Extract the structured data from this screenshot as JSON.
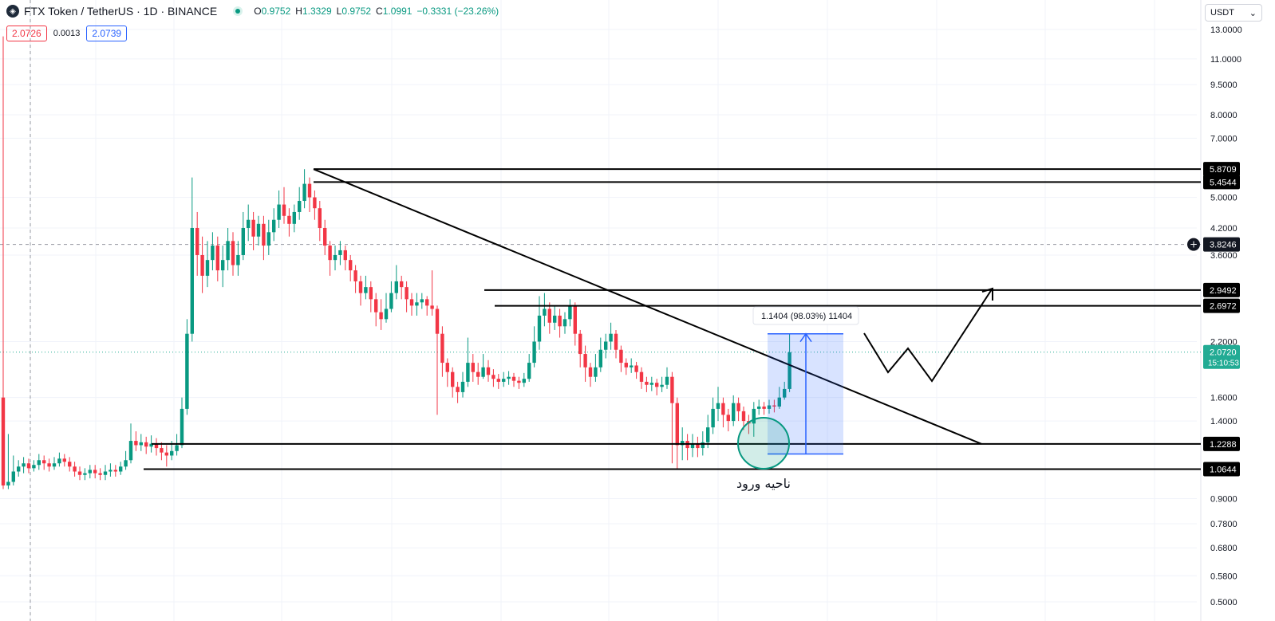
{
  "header": {
    "symbol_title": "FTX Token / TetherUS · 1D · BINANCE",
    "ohlc": [
      {
        "label": "O",
        "value": "0.9752"
      },
      {
        "label": "H",
        "value": "1.3329"
      },
      {
        "label": "L",
        "value": "0.9752"
      },
      {
        "label": "C",
        "value": "1.0991"
      },
      {
        "label": "",
        "value": "−0.3331 (−23.26%)"
      }
    ],
    "sell_price": "2.0726",
    "spread": "0.0013",
    "buy_price": "2.0739",
    "currency": "USDT"
  },
  "colors": {
    "up": "#089981",
    "down": "#f23645",
    "accent": "#2962ff",
    "last_price": "#22ab94"
  },
  "chart_data": {
    "type": "candlestick",
    "symbol": "FTX Token / TetherUS",
    "interval": "1D",
    "exchange": "BINANCE",
    "y_scale": "log",
    "ylim": [
      0.5,
      13.0
    ],
    "y_ticks": [
      "13.0000",
      "11.0000",
      "9.5000",
      "8.0000",
      "7.0000",
      "5.0000",
      "4.2000",
      "3.6000",
      "2.2000",
      "1.6000",
      "1.4000",
      "0.9000",
      "0.7800",
      "0.6800",
      "0.5800",
      "0.5000"
    ],
    "price_levels": [
      {
        "label": "5.8709",
        "value": 5.8709
      },
      {
        "label": "5.4544",
        "value": 5.4544
      },
      {
        "label": "2.9492",
        "value": 2.9492
      },
      {
        "label": "2.6972",
        "value": 2.6972
      },
      {
        "label": "1.2288",
        "value": 1.2288
      },
      {
        "label": "1.0644",
        "value": 1.0644
      }
    ],
    "crosshair_price": {
      "label": "3.8246",
      "value": 3.8246
    },
    "last_price": {
      "label": "2.0720",
      "value": 2.072,
      "countdown": "15:10:53"
    },
    "measure_label": "1.1404 (98.03%) 11404",
    "entry_zone_label": "ناحیه ورود",
    "candles": [
      [
        1.6,
        0.97,
        12.5,
        0.95
      ],
      [
        0.97,
        0.99,
        1.3,
        0.95
      ],
      [
        0.99,
        1.05,
        1.15,
        0.97
      ],
      [
        1.05,
        1.08,
        1.12,
        1.02
      ],
      [
        1.08,
        1.1,
        1.14,
        1.04
      ],
      [
        1.1,
        1.07,
        1.13,
        1.04
      ],
      [
        1.07,
        1.09,
        1.12,
        1.05
      ],
      [
        1.09,
        1.12,
        1.16,
        1.06
      ],
      [
        1.12,
        1.1,
        1.15,
        1.06
      ],
      [
        1.1,
        1.08,
        1.13,
        1.05
      ],
      [
        1.08,
        1.1,
        1.14,
        1.06
      ],
      [
        1.1,
        1.13,
        1.17,
        1.08
      ],
      [
        1.13,
        1.11,
        1.16,
        1.08
      ],
      [
        1.11,
        1.08,
        1.14,
        1.05
      ],
      [
        1.08,
        1.05,
        1.11,
        1.02
      ],
      [
        1.05,
        1.03,
        1.08,
        1.0
      ],
      [
        1.03,
        1.04,
        1.07,
        1.0
      ],
      [
        1.04,
        1.06,
        1.09,
        1.01
      ],
      [
        1.06,
        1.04,
        1.09,
        1.01
      ],
      [
        1.04,
        1.03,
        1.07,
        1.0
      ],
      [
        1.03,
        1.05,
        1.09,
        1.0
      ],
      [
        1.05,
        1.06,
        1.1,
        1.02
      ],
      [
        1.06,
        1.05,
        1.09,
        1.02
      ],
      [
        1.05,
        1.08,
        1.11,
        1.03
      ],
      [
        1.08,
        1.12,
        1.18,
        1.06
      ],
      [
        1.12,
        1.25,
        1.38,
        1.1
      ],
      [
        1.25,
        1.22,
        1.32,
        1.18
      ],
      [
        1.22,
        1.24,
        1.3,
        1.18
      ],
      [
        1.24,
        1.21,
        1.28,
        1.16
      ],
      [
        1.21,
        1.23,
        1.29,
        1.17
      ],
      [
        1.23,
        1.2,
        1.27,
        1.15
      ],
      [
        1.2,
        1.17,
        1.24,
        1.12
      ],
      [
        1.17,
        1.15,
        1.22,
        1.08
      ],
      [
        1.15,
        1.18,
        1.25,
        1.12
      ],
      [
        1.18,
        1.22,
        1.3,
        1.15
      ],
      [
        1.22,
        1.5,
        1.6,
        1.2
      ],
      [
        1.5,
        2.3,
        2.5,
        1.45
      ],
      [
        2.3,
        4.2,
        5.6,
        2.2
      ],
      [
        4.2,
        3.6,
        4.6,
        3.2
      ],
      [
        3.6,
        3.2,
        4.0,
        2.9
      ],
      [
        3.2,
        3.5,
        3.9,
        3.0
      ],
      [
        3.5,
        3.8,
        4.1,
        3.3
      ],
      [
        3.8,
        3.3,
        4.0,
        3.1
      ],
      [
        3.3,
        3.5,
        3.8,
        3.0
      ],
      [
        3.5,
        3.9,
        4.2,
        3.3
      ],
      [
        3.9,
        3.4,
        4.1,
        3.2
      ],
      [
        3.4,
        3.6,
        3.9,
        3.2
      ],
      [
        3.6,
        4.2,
        4.6,
        3.5
      ],
      [
        4.2,
        4.4,
        4.8,
        3.9
      ],
      [
        4.4,
        4.0,
        4.6,
        3.7
      ],
      [
        4.0,
        4.3,
        4.5,
        3.8
      ],
      [
        4.3,
        3.8,
        4.5,
        3.5
      ],
      [
        3.8,
        4.1,
        4.4,
        3.6
      ],
      [
        4.1,
        4.4,
        4.7,
        3.9
      ],
      [
        4.4,
        4.8,
        5.2,
        4.2
      ],
      [
        4.8,
        4.5,
        5.3,
        4.3
      ],
      [
        4.5,
        4.3,
        4.7,
        4.0
      ],
      [
        4.3,
        4.6,
        4.8,
        4.1
      ],
      [
        4.6,
        4.9,
        5.3,
        4.4
      ],
      [
        4.9,
        5.4,
        5.87,
        4.7
      ],
      [
        5.4,
        5.0,
        5.6,
        4.6
      ],
      [
        5.0,
        4.7,
        5.2,
        4.4
      ],
      [
        4.7,
        4.2,
        4.9,
        3.9
      ],
      [
        4.2,
        3.8,
        4.4,
        3.6
      ],
      [
        3.8,
        3.5,
        3.9,
        3.2
      ],
      [
        3.5,
        3.6,
        3.8,
        3.3
      ],
      [
        3.6,
        3.7,
        3.9,
        3.4
      ],
      [
        3.7,
        3.5,
        3.8,
        3.3
      ],
      [
        3.5,
        3.3,
        3.6,
        3.1
      ],
      [
        3.3,
        3.1,
        3.4,
        2.9
      ],
      [
        3.1,
        2.9,
        3.2,
        2.7
      ],
      [
        2.9,
        3.0,
        3.2,
        2.8
      ],
      [
        3.0,
        2.8,
        3.1,
        2.6
      ],
      [
        2.8,
        2.6,
        2.9,
        2.4
      ],
      [
        2.6,
        2.5,
        2.8,
        2.35
      ],
      [
        2.5,
        2.65,
        2.9,
        2.45
      ],
      [
        2.65,
        2.9,
        3.1,
        2.6
      ],
      [
        2.9,
        3.1,
        3.4,
        2.8
      ],
      [
        3.1,
        3.0,
        3.2,
        2.8
      ],
      [
        3.0,
        2.8,
        3.1,
        2.6
      ],
      [
        2.8,
        2.7,
        2.9,
        2.55
      ],
      [
        2.7,
        2.75,
        2.9,
        2.55
      ],
      [
        2.75,
        2.8,
        2.9,
        2.65
      ],
      [
        2.8,
        2.7,
        2.85,
        2.55
      ],
      [
        2.7,
        2.65,
        3.3,
        2.55
      ],
      [
        2.65,
        2.3,
        2.7,
        1.45
      ],
      [
        2.3,
        1.95,
        2.4,
        1.8
      ],
      [
        1.95,
        1.85,
        2.0,
        1.7
      ],
      [
        1.85,
        1.7,
        1.9,
        1.6
      ],
      [
        1.7,
        1.65,
        1.75,
        1.55
      ],
      [
        1.65,
        1.75,
        1.85,
        1.6
      ],
      [
        1.75,
        1.95,
        2.25,
        1.7
      ],
      [
        1.95,
        1.85,
        2.05,
        1.75
      ],
      [
        1.85,
        1.8,
        1.95,
        1.72
      ],
      [
        1.8,
        1.9,
        2.05,
        1.78
      ],
      [
        1.9,
        1.82,
        1.98,
        1.75
      ],
      [
        1.82,
        1.78,
        1.88,
        1.7
      ],
      [
        1.78,
        1.75,
        1.83,
        1.68
      ],
      [
        1.75,
        1.78,
        1.85,
        1.7
      ],
      [
        1.78,
        1.8,
        1.86,
        1.72
      ],
      [
        1.8,
        1.76,
        1.84,
        1.7
      ],
      [
        1.76,
        1.74,
        1.8,
        1.68
      ],
      [
        1.74,
        1.78,
        1.84,
        1.7
      ],
      [
        1.78,
        1.95,
        2.05,
        1.75
      ],
      [
        1.95,
        2.2,
        2.4,
        1.9
      ],
      [
        2.2,
        2.55,
        2.85,
        2.1
      ],
      [
        2.55,
        2.65,
        2.9,
        2.4
      ],
      [
        2.65,
        2.45,
        2.75,
        2.3
      ],
      [
        2.45,
        2.55,
        2.7,
        2.35
      ],
      [
        2.55,
        2.4,
        2.65,
        2.25
      ],
      [
        2.4,
        2.5,
        2.6,
        2.3
      ],
      [
        2.5,
        2.7,
        2.8,
        2.4
      ],
      [
        2.7,
        2.3,
        2.75,
        2.15
      ],
      [
        2.3,
        2.05,
        2.35,
        1.9
      ],
      [
        2.05,
        1.9,
        2.15,
        1.75
      ],
      [
        1.9,
        1.8,
        1.95,
        1.7
      ],
      [
        1.8,
        1.9,
        2.05,
        1.75
      ],
      [
        1.9,
        2.1,
        2.25,
        1.85
      ],
      [
        2.1,
        2.2,
        2.3,
        2.0
      ],
      [
        2.2,
        2.3,
        2.45,
        2.1
      ],
      [
        2.3,
        2.1,
        2.35,
        2.0
      ],
      [
        2.1,
        1.95,
        2.15,
        1.85
      ],
      [
        1.95,
        1.9,
        2.0,
        1.82
      ],
      [
        1.9,
        1.92,
        2.0,
        1.84
      ],
      [
        1.92,
        1.85,
        1.96,
        1.78
      ],
      [
        1.85,
        1.75,
        1.9,
        1.68
      ],
      [
        1.75,
        1.72,
        1.8,
        1.65
      ],
      [
        1.72,
        1.74,
        1.8,
        1.66
      ],
      [
        1.74,
        1.7,
        1.78,
        1.62
      ],
      [
        1.7,
        1.72,
        1.8,
        1.65
      ],
      [
        1.72,
        1.8,
        1.9,
        1.68
      ],
      [
        1.8,
        1.55,
        1.85,
        1.1
      ],
      [
        1.55,
        1.22,
        1.6,
        1.06
      ],
      [
        1.22,
        1.25,
        1.35,
        1.12
      ],
      [
        1.25,
        1.2,
        1.3,
        1.12
      ],
      [
        1.2,
        1.23,
        1.3,
        1.14
      ],
      [
        1.23,
        1.2,
        1.28,
        1.14
      ],
      [
        1.2,
        1.24,
        1.32,
        1.15
      ],
      [
        1.24,
        1.35,
        1.45,
        1.2
      ],
      [
        1.35,
        1.5,
        1.6,
        1.3
      ],
      [
        1.5,
        1.55,
        1.7,
        1.4
      ],
      [
        1.55,
        1.45,
        1.6,
        1.35
      ],
      [
        1.45,
        1.4,
        1.5,
        1.32
      ],
      [
        1.4,
        1.55,
        1.62,
        1.36
      ],
      [
        1.55,
        1.48,
        1.6,
        1.4
      ],
      [
        1.48,
        1.4,
        1.52,
        1.33
      ],
      [
        1.4,
        1.38,
        1.45,
        1.3
      ],
      [
        1.38,
        1.5,
        1.56,
        1.28
      ],
      [
        1.5,
        1.52,
        1.58,
        1.45
      ],
      [
        1.52,
        1.5,
        1.56,
        1.45
      ],
      [
        1.5,
        1.53,
        1.58,
        1.46
      ],
      [
        1.53,
        1.52,
        1.58,
        1.47
      ],
      [
        1.52,
        1.6,
        1.7,
        1.5
      ],
      [
        1.6,
        1.68,
        1.75,
        1.58
      ],
      [
        1.68,
        2.07,
        2.3,
        1.65
      ]
    ]
  }
}
